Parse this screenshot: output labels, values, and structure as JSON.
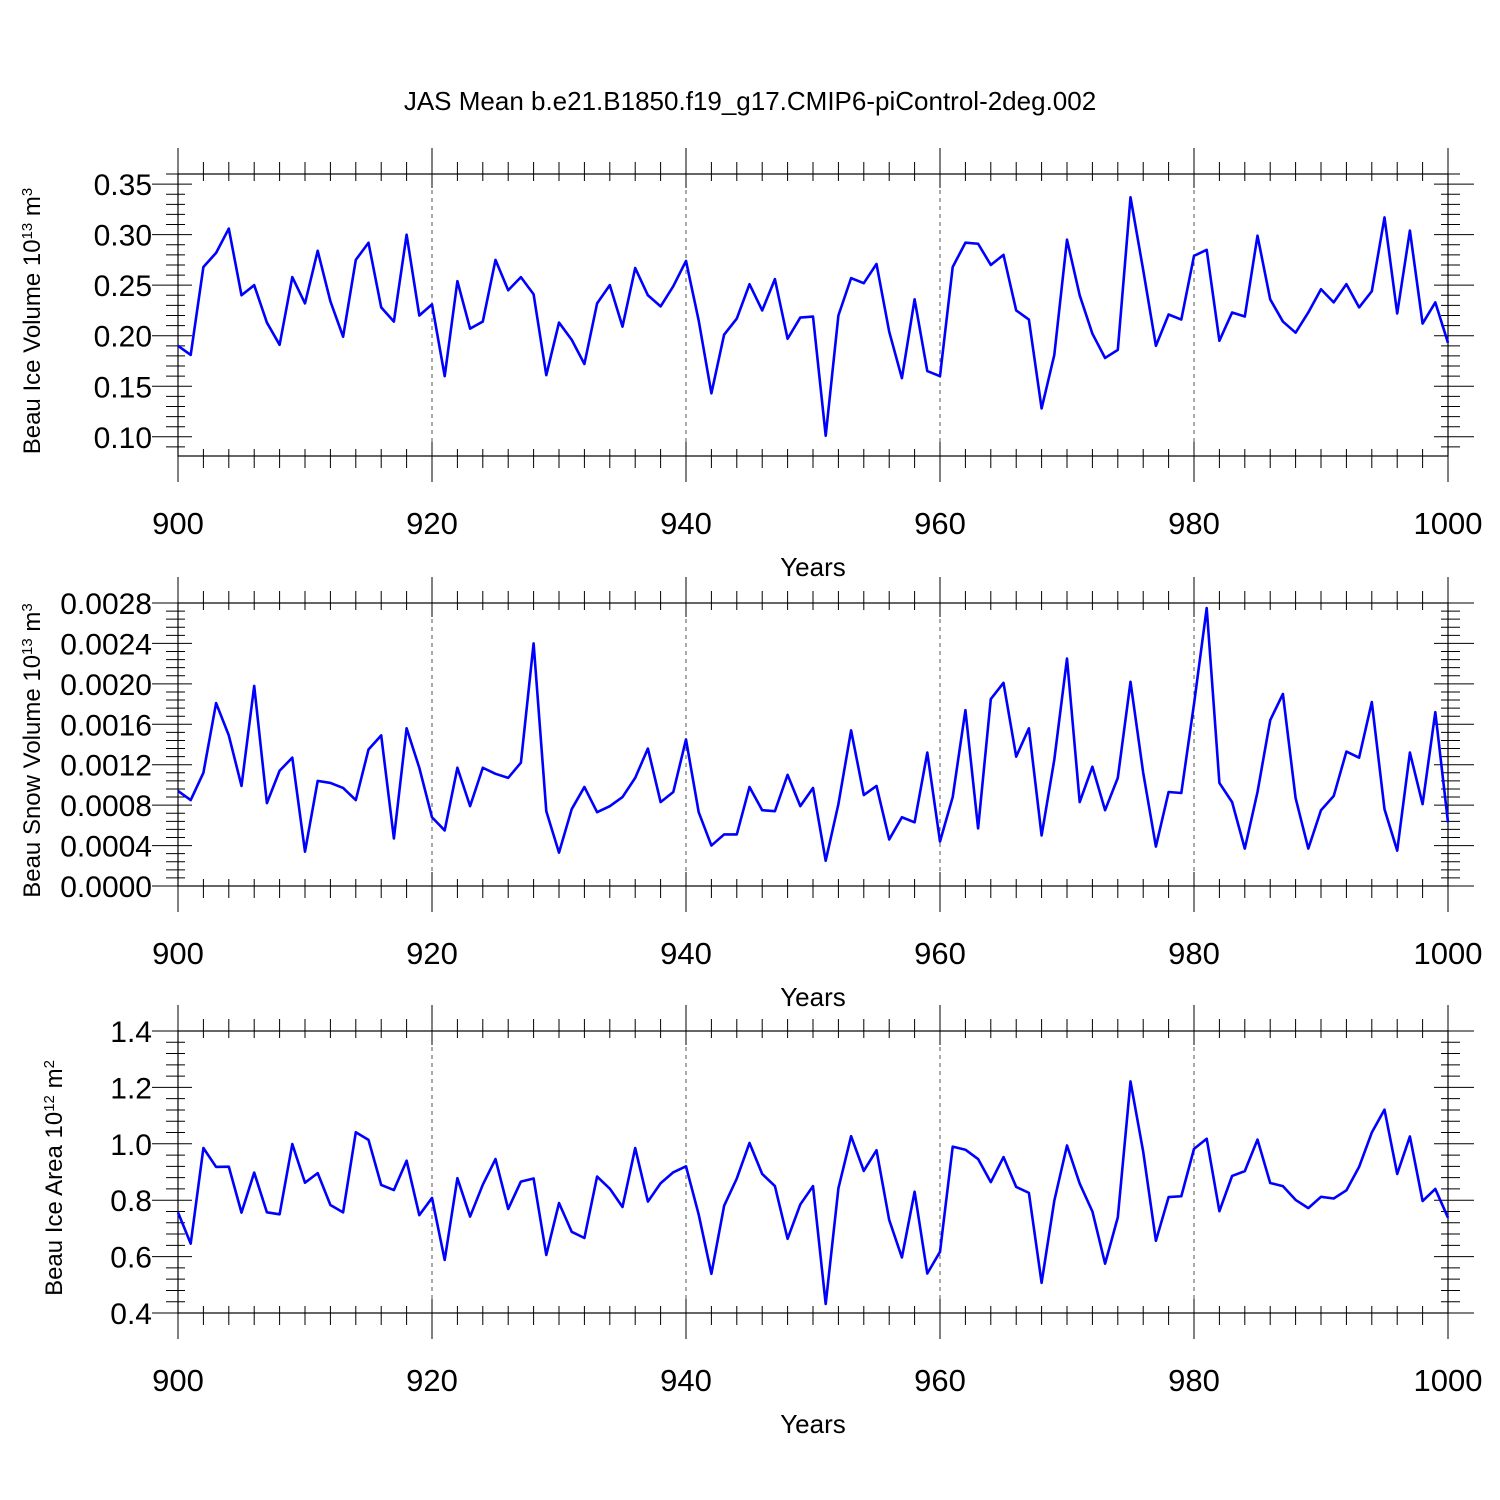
{
  "title": "JAS Mean b.e21.B1850.f19_g17.CMIP6-piControl-2deg.002",
  "colors": {
    "series": "#0000ff",
    "axes": "#000000",
    "grid": "#555555"
  },
  "chart_data": [
    {
      "type": "line",
      "name": "beau-ice-volume",
      "ylabel_main": "Beau Ice Volume 10",
      "ylabel_exp": "13",
      "ylabel_unit": "m",
      "ylabel_unit_exp": "3",
      "xlabel": "Years",
      "xlim": [
        900,
        1000
      ],
      "ylim": [
        0.081,
        0.36
      ],
      "xticks": [
        900,
        920,
        940,
        960,
        980,
        1000
      ],
      "xtick_labels": [
        "900",
        "920",
        "940",
        "960",
        "980",
        "1000"
      ],
      "yticks": [
        0.1,
        0.15,
        0.2,
        0.25,
        0.3,
        0.35
      ],
      "ytick_labels": [
        "0.10",
        "0.15",
        "0.20",
        "0.25",
        "0.30",
        "0.35"
      ],
      "x_start": 900,
      "values": [
        0.19,
        0.181,
        0.268,
        0.282,
        0.306,
        0.24,
        0.25,
        0.213,
        0.191,
        0.258,
        0.232,
        0.284,
        0.234,
        0.199,
        0.275,
        0.292,
        0.228,
        0.214,
        0.3,
        0.22,
        0.231,
        0.16,
        0.254,
        0.207,
        0.214,
        0.275,
        0.245,
        0.258,
        0.241,
        0.161,
        0.213,
        0.196,
        0.172,
        0.232,
        0.25,
        0.209,
        0.267,
        0.24,
        0.229,
        0.249,
        0.274,
        0.215,
        0.143,
        0.201,
        0.217,
        0.251,
        0.225,
        0.256,
        0.197,
        0.218,
        0.219,
        0.101,
        0.22,
        0.257,
        0.252,
        0.271,
        0.204,
        0.158,
        0.236,
        0.165,
        0.16,
        0.268,
        0.292,
        0.291,
        0.27,
        0.28,
        0.225,
        0.216,
        0.128,
        0.181,
        0.295,
        0.24,
        0.202,
        0.178,
        0.186,
        0.337,
        0.265,
        0.19,
        0.221,
        0.216,
        0.279,
        0.285,
        0.195,
        0.223,
        0.219,
        0.299,
        0.236,
        0.214,
        0.203,
        0.223,
        0.246,
        0.233,
        0.251,
        0.228,
        0.244,
        0.317,
        0.222,
        0.304,
        0.212,
        0.233,
        0.193
      ]
    },
    {
      "type": "line",
      "name": "beau-snow-volume",
      "ylabel_main": "Beau Snow Volume 10",
      "ylabel_exp": "13",
      "ylabel_unit": "m",
      "ylabel_unit_exp": "3",
      "xlabel": "Years",
      "xlim": [
        900,
        1000
      ],
      "ylim": [
        0.0,
        0.0028
      ],
      "xticks": [
        900,
        920,
        940,
        960,
        980,
        1000
      ],
      "xtick_labels": [
        "900",
        "920",
        "940",
        "960",
        "980",
        "1000"
      ],
      "yticks": [
        0.0,
        0.0004,
        0.0008,
        0.0012,
        0.0016,
        0.002,
        0.0024,
        0.0028
      ],
      "ytick_labels": [
        "0.0000",
        "0.0004",
        "0.0008",
        "0.0012",
        "0.0016",
        "0.0020",
        "0.0024",
        "0.0028"
      ],
      "x_start": 900,
      "values": [
        0.00094,
        0.00085,
        0.00112,
        0.00181,
        0.00149,
        0.00099,
        0.00198,
        0.00082,
        0.00114,
        0.00127,
        0.00034,
        0.00104,
        0.00102,
        0.00097,
        0.00085,
        0.00135,
        0.00149,
        0.00047,
        0.00156,
        0.00117,
        0.00068,
        0.00055,
        0.00117,
        0.00079,
        0.00117,
        0.00111,
        0.00107,
        0.00122,
        0.0024,
        0.00074,
        0.00033,
        0.00076,
        0.00098,
        0.00073,
        0.00079,
        0.00088,
        0.00107,
        0.00136,
        0.00083,
        0.00093,
        0.00145,
        0.00073,
        0.0004,
        0.00051,
        0.00051,
        0.00098,
        0.00075,
        0.00074,
        0.0011,
        0.00079,
        0.00097,
        0.00025,
        0.00081,
        0.00154,
        0.0009,
        0.00099,
        0.00046,
        0.00068,
        0.00063,
        0.00132,
        0.00044,
        0.00088,
        0.00174,
        0.00057,
        0.00185,
        0.00201,
        0.00128,
        0.00156,
        0.0005,
        0.00125,
        0.00225,
        0.00083,
        0.00118,
        0.00075,
        0.00107,
        0.00202,
        0.00112,
        0.00039,
        0.00093,
        0.00092,
        0.0018,
        0.00275,
        0.00102,
        0.00083,
        0.00037,
        0.00093,
        0.00164,
        0.0019,
        0.00087,
        0.00037,
        0.00075,
        0.00089,
        0.00133,
        0.00127,
        0.00182,
        0.00076,
        0.00035,
        0.00132,
        0.00081,
        0.00172,
        0.00063
      ]
    },
    {
      "type": "line",
      "name": "beau-ice-area",
      "ylabel_main": "Beau Ice Area 10",
      "ylabel_exp": "12",
      "ylabel_unit": "m",
      "ylabel_unit_exp": "2",
      "xlabel": "Years",
      "xlim": [
        900,
        1000
      ],
      "ylim": [
        0.4,
        1.4
      ],
      "xticks": [
        900,
        920,
        940,
        960,
        980,
        1000
      ],
      "xtick_labels": [
        "900",
        "920",
        "940",
        "960",
        "980",
        "1000"
      ],
      "yticks": [
        0.4,
        0.6,
        0.8,
        1.0,
        1.2,
        1.4
      ],
      "ytick_labels": [
        "0.4",
        "0.6",
        "0.8",
        "1.0",
        "1.2",
        "1.4"
      ],
      "x_start": 900,
      "values": [
        0.757,
        0.646,
        0.985,
        0.918,
        0.919,
        0.756,
        0.898,
        0.757,
        0.75,
        0.999,
        0.862,
        0.896,
        0.783,
        0.757,
        1.041,
        1.014,
        0.854,
        0.836,
        0.94,
        0.747,
        0.808,
        0.588,
        0.878,
        0.742,
        0.855,
        0.946,
        0.769,
        0.866,
        0.877,
        0.606,
        0.79,
        0.688,
        0.666,
        0.884,
        0.841,
        0.776,
        0.985,
        0.795,
        0.86,
        0.899,
        0.92,
        0.749,
        0.539,
        0.78,
        0.877,
        1.003,
        0.893,
        0.85,
        0.663,
        0.785,
        0.85,
        0.432,
        0.842,
        1.027,
        0.904,
        0.977,
        0.73,
        0.597,
        0.83,
        0.54,
        0.617,
        0.99,
        0.979,
        0.946,
        0.864,
        0.953,
        0.847,
        0.826,
        0.507,
        0.798,
        0.994,
        0.859,
        0.76,
        0.575,
        0.739,
        1.221,
        0.972,
        0.656,
        0.811,
        0.814,
        0.982,
        1.018,
        0.761,
        0.886,
        0.903,
        1.015,
        0.861,
        0.85,
        0.801,
        0.772,
        0.812,
        0.806,
        0.835,
        0.918,
        1.04,
        1.121,
        0.893,
        1.026,
        0.797,
        0.84,
        0.738
      ]
    }
  ]
}
